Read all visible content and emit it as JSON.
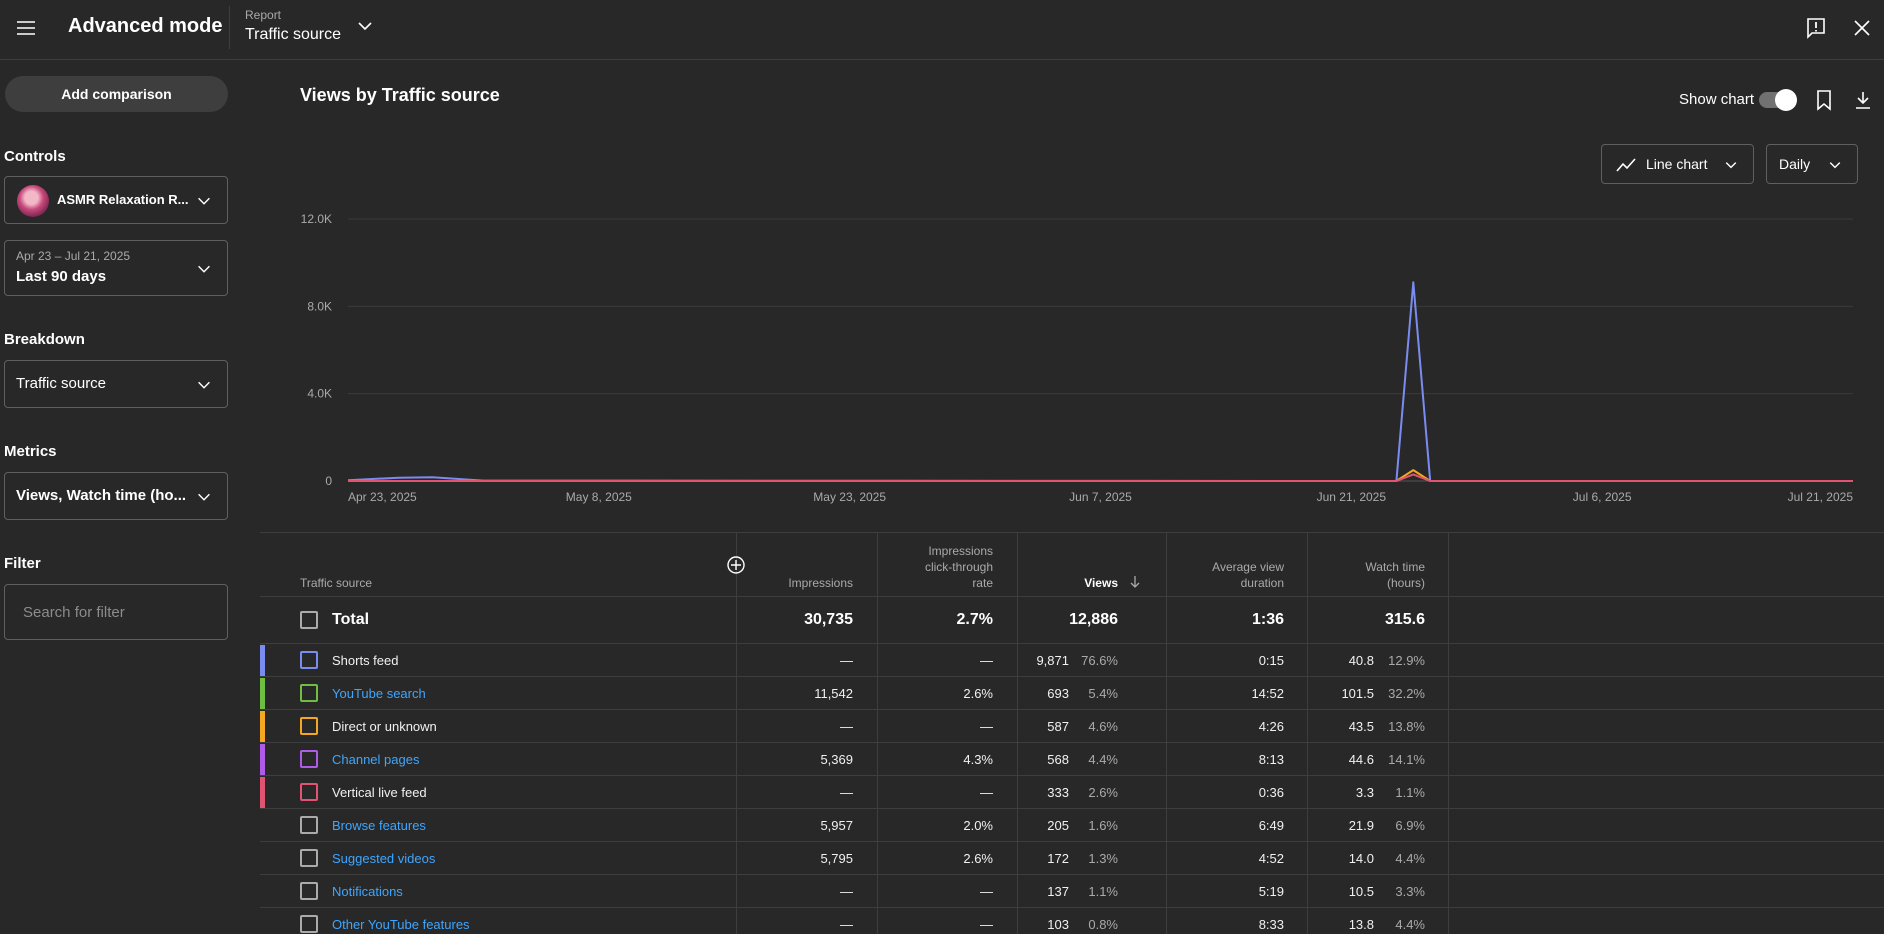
{
  "header": {
    "title": "Advanced mode",
    "report_label": "Report",
    "report_value": "Traffic source"
  },
  "sidebar": {
    "add_comparison": "Add comparison",
    "controls_heading": "Controls",
    "channel_name": "ASMR Relaxation R...",
    "date_range_small": "Apr 23 – Jul 21, 2025",
    "date_range": "Last 90 days",
    "breakdown_heading": "Breakdown",
    "breakdown_value": "Traffic source",
    "metrics_heading": "Metrics",
    "metrics_value": "Views, Watch time (ho...",
    "filter_heading": "Filter",
    "filter_placeholder": "Search for filter"
  },
  "chart_panel": {
    "title": "Views by Traffic source",
    "show_chart_label": "Show chart",
    "show_chart_on": true,
    "chart_type_label": "Line chart",
    "interval_label": "Daily"
  },
  "chart_data": {
    "type": "line",
    "x_start": "2025-04-23",
    "x_end": "2025-07-21",
    "x_ticks": [
      "Apr 23, 2025",
      "May 8, 2025",
      "May 23, 2025",
      "Jun 7, 2025",
      "Jun 21, 2025",
      "Jul 6, 2025",
      "Jul 21, 2025"
    ],
    "y_ticks": [
      "0",
      "4.0K",
      "8.0K",
      "12.0K"
    ],
    "ylim": [
      0,
      12000
    ],
    "grid": true,
    "series": [
      {
        "name": "Shorts feed",
        "color": "#7b8cf0",
        "points": [
          [
            "2025-04-23",
            30
          ],
          [
            "2025-04-26",
            150
          ],
          [
            "2025-04-28",
            170
          ],
          [
            "2025-05-01",
            20
          ],
          [
            "2025-06-24",
            0
          ],
          [
            "2025-06-25",
            9100
          ],
          [
            "2025-06-26",
            0
          ],
          [
            "2025-07-21",
            0
          ]
        ]
      },
      {
        "name": "Direct or unknown",
        "color": "#f5a623",
        "points": [
          [
            "2025-04-23",
            0
          ],
          [
            "2025-06-24",
            0
          ],
          [
            "2025-06-25",
            500
          ],
          [
            "2025-06-26",
            0
          ],
          [
            "2025-07-21",
            0
          ]
        ]
      },
      {
        "name": "Vertical live feed",
        "color": "#e05472",
        "points": [
          [
            "2025-04-23",
            0
          ],
          [
            "2025-06-24",
            0
          ],
          [
            "2025-06-25",
            300
          ],
          [
            "2025-06-26",
            0
          ],
          [
            "2025-07-21",
            0
          ]
        ]
      }
    ]
  },
  "table": {
    "headers": {
      "source": "Traffic source",
      "impressions": "Impressions",
      "ctr_line1": "Impressions",
      "ctr_line2": "click-through",
      "ctr_line3": "rate",
      "views": "Views",
      "avd_line1": "Average view",
      "avd_line2": "duration",
      "wt_line1": "Watch time",
      "wt_line2": "(hours)"
    },
    "total": {
      "label": "Total",
      "impressions": "30,735",
      "ctr": "2.7%",
      "views": "12,886",
      "avd": "1:36",
      "watch_time": "315.6"
    },
    "rows": [
      {
        "label": "Shorts feed",
        "link": false,
        "color": "#7b8cf0",
        "box": "#7b8cf0",
        "impressions": "—",
        "ctr": "—",
        "views": "9,871",
        "views_pct": "76.6%",
        "avd": "0:15",
        "watch_time": "40.8",
        "watch_pct": "12.9%"
      },
      {
        "label": "YouTube search",
        "link": true,
        "color": "#6fbe44",
        "box": "#6fbe44",
        "impressions": "11,542",
        "ctr": "2.6%",
        "views": "693",
        "views_pct": "5.4%",
        "avd": "14:52",
        "watch_time": "101.5",
        "watch_pct": "32.2%"
      },
      {
        "label": "Direct or unknown",
        "link": false,
        "color": "#f5a623",
        "box": "#f5a623",
        "impressions": "—",
        "ctr": "—",
        "views": "587",
        "views_pct": "4.6%",
        "avd": "4:26",
        "watch_time": "43.5",
        "watch_pct": "13.8%"
      },
      {
        "label": "Channel pages",
        "link": true,
        "color": "#b05be8",
        "box": "#b05be8",
        "impressions": "5,369",
        "ctr": "4.3%",
        "views": "568",
        "views_pct": "4.4%",
        "avd": "8:13",
        "watch_time": "44.6",
        "watch_pct": "14.1%"
      },
      {
        "label": "Vertical live feed",
        "link": false,
        "color": "#e05472",
        "box": "#e05472",
        "impressions": "—",
        "ctr": "—",
        "views": "333",
        "views_pct": "2.6%",
        "avd": "0:36",
        "watch_time": "3.3",
        "watch_pct": "1.1%"
      },
      {
        "label": "Browse features",
        "link": true,
        "color": "",
        "box": "#aaaaaa",
        "impressions": "5,957",
        "ctr": "2.0%",
        "views": "205",
        "views_pct": "1.6%",
        "avd": "6:49",
        "watch_time": "21.9",
        "watch_pct": "6.9%"
      },
      {
        "label": "Suggested videos",
        "link": true,
        "color": "",
        "box": "#aaaaaa",
        "impressions": "5,795",
        "ctr": "2.6%",
        "views": "172",
        "views_pct": "1.3%",
        "avd": "4:52",
        "watch_time": "14.0",
        "watch_pct": "4.4%"
      },
      {
        "label": "Notifications",
        "link": true,
        "color": "",
        "box": "#aaaaaa",
        "impressions": "—",
        "ctr": "—",
        "views": "137",
        "views_pct": "1.1%",
        "avd": "5:19",
        "watch_time": "10.5",
        "watch_pct": "3.3%"
      },
      {
        "label": "Other YouTube features",
        "link": true,
        "color": "",
        "box": "#aaaaaa",
        "impressions": "—",
        "ctr": "—",
        "views": "103",
        "views_pct": "0.8%",
        "avd": "8:33",
        "watch_time": "13.8",
        "watch_pct": "4.4%"
      }
    ]
  }
}
